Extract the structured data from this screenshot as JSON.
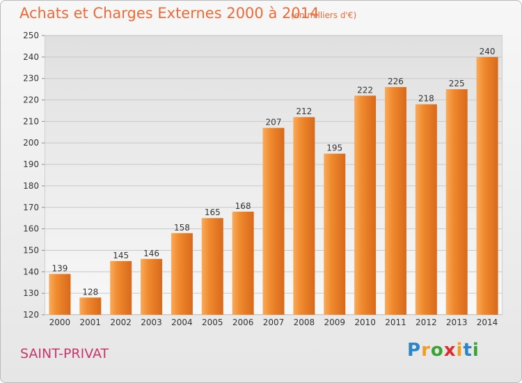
{
  "header": {
    "title": "Achats et Charges Externes 2000 à 2014",
    "unit": "(en milliers d'€)"
  },
  "footer": {
    "commune": "SAINT-PRIVAT"
  },
  "logo": {
    "letters": [
      "P",
      "r",
      "o",
      "x",
      "i",
      "t",
      "i"
    ],
    "colors": [
      "#2a86c8",
      "#f39c1f",
      "#3aa335",
      "#e22a2a",
      "#f39c1f",
      "#2a86c8",
      "#3aa335"
    ]
  },
  "colors": {
    "bar": "#f08a2e",
    "bar_highlight": "#f8ab5c",
    "bar_shadow": "#d8691b",
    "text": "#333333",
    "title": "#ec6a36",
    "commune": "#c9356b"
  },
  "chart_data": {
    "type": "bar",
    "categories": [
      "2000",
      "2001",
      "2002",
      "2003",
      "2004",
      "2005",
      "2006",
      "2007",
      "2008",
      "2009",
      "2010",
      "2011",
      "2012",
      "2013",
      "2014"
    ],
    "values": [
      139,
      128,
      145,
      146,
      158,
      165,
      168,
      207,
      212,
      195,
      222,
      226,
      218,
      225,
      240
    ],
    "title": "Achats et Charges Externes 2000 à 2014",
    "subtitle": "(en milliers d'€)",
    "xlabel": "",
    "ylabel": "",
    "ylim": [
      120,
      250
    ],
    "yticks": [
      120,
      130,
      140,
      150,
      160,
      170,
      180,
      190,
      200,
      210,
      220,
      230,
      240,
      250
    ],
    "grid": true,
    "data_labels": true
  }
}
